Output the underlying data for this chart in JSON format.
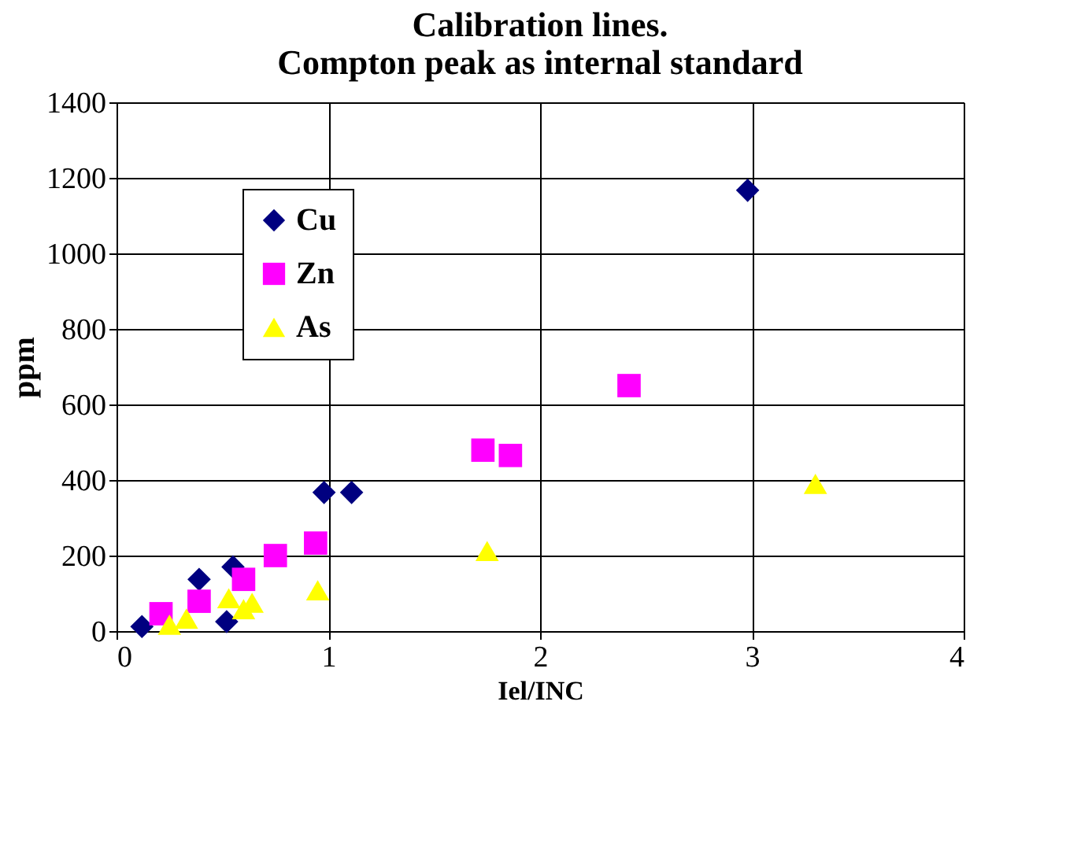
{
  "chart_data": {
    "type": "scatter",
    "title": [
      "Calibration lines.",
      "Compton peak as internal standard"
    ],
    "xlabel": "Iel/INC",
    "ylabel": "ppm",
    "series": [
      {
        "name": "Cu",
        "color": "#000080",
        "marker": "diamond",
        "x": [
          0.12,
          0.39,
          0.55,
          0.52,
          0.98,
          1.11,
          2.98
        ],
        "values": [
          12,
          137,
          170,
          25,
          367,
          367,
          1167
        ]
      },
      {
        "name": "Zn",
        "color": "#ff00ff",
        "marker": "square",
        "x": [
          0.21,
          0.39,
          0.6,
          0.75,
          0.94,
          1.73,
          1.86,
          2.42
        ],
        "values": [
          46,
          79,
          137,
          200,
          233,
          479,
          465,
          650
        ]
      },
      {
        "name": "As",
        "color": "#ffff00",
        "marker": "triangle",
        "x": [
          0.25,
          0.33,
          0.53,
          0.6,
          0.64,
          0.95,
          1.75,
          3.3
        ],
        "values": [
          17,
          33,
          87,
          58,
          75,
          108,
          212,
          390
        ]
      }
    ],
    "xlim": [
      0,
      4
    ],
    "xticks": [
      0,
      1,
      2,
      3,
      4
    ],
    "ylim": [
      0,
      1400
    ],
    "yticks": [
      0,
      200,
      400,
      600,
      800,
      1000,
      1200,
      1400
    ],
    "grid": true,
    "legend": "top left"
  }
}
